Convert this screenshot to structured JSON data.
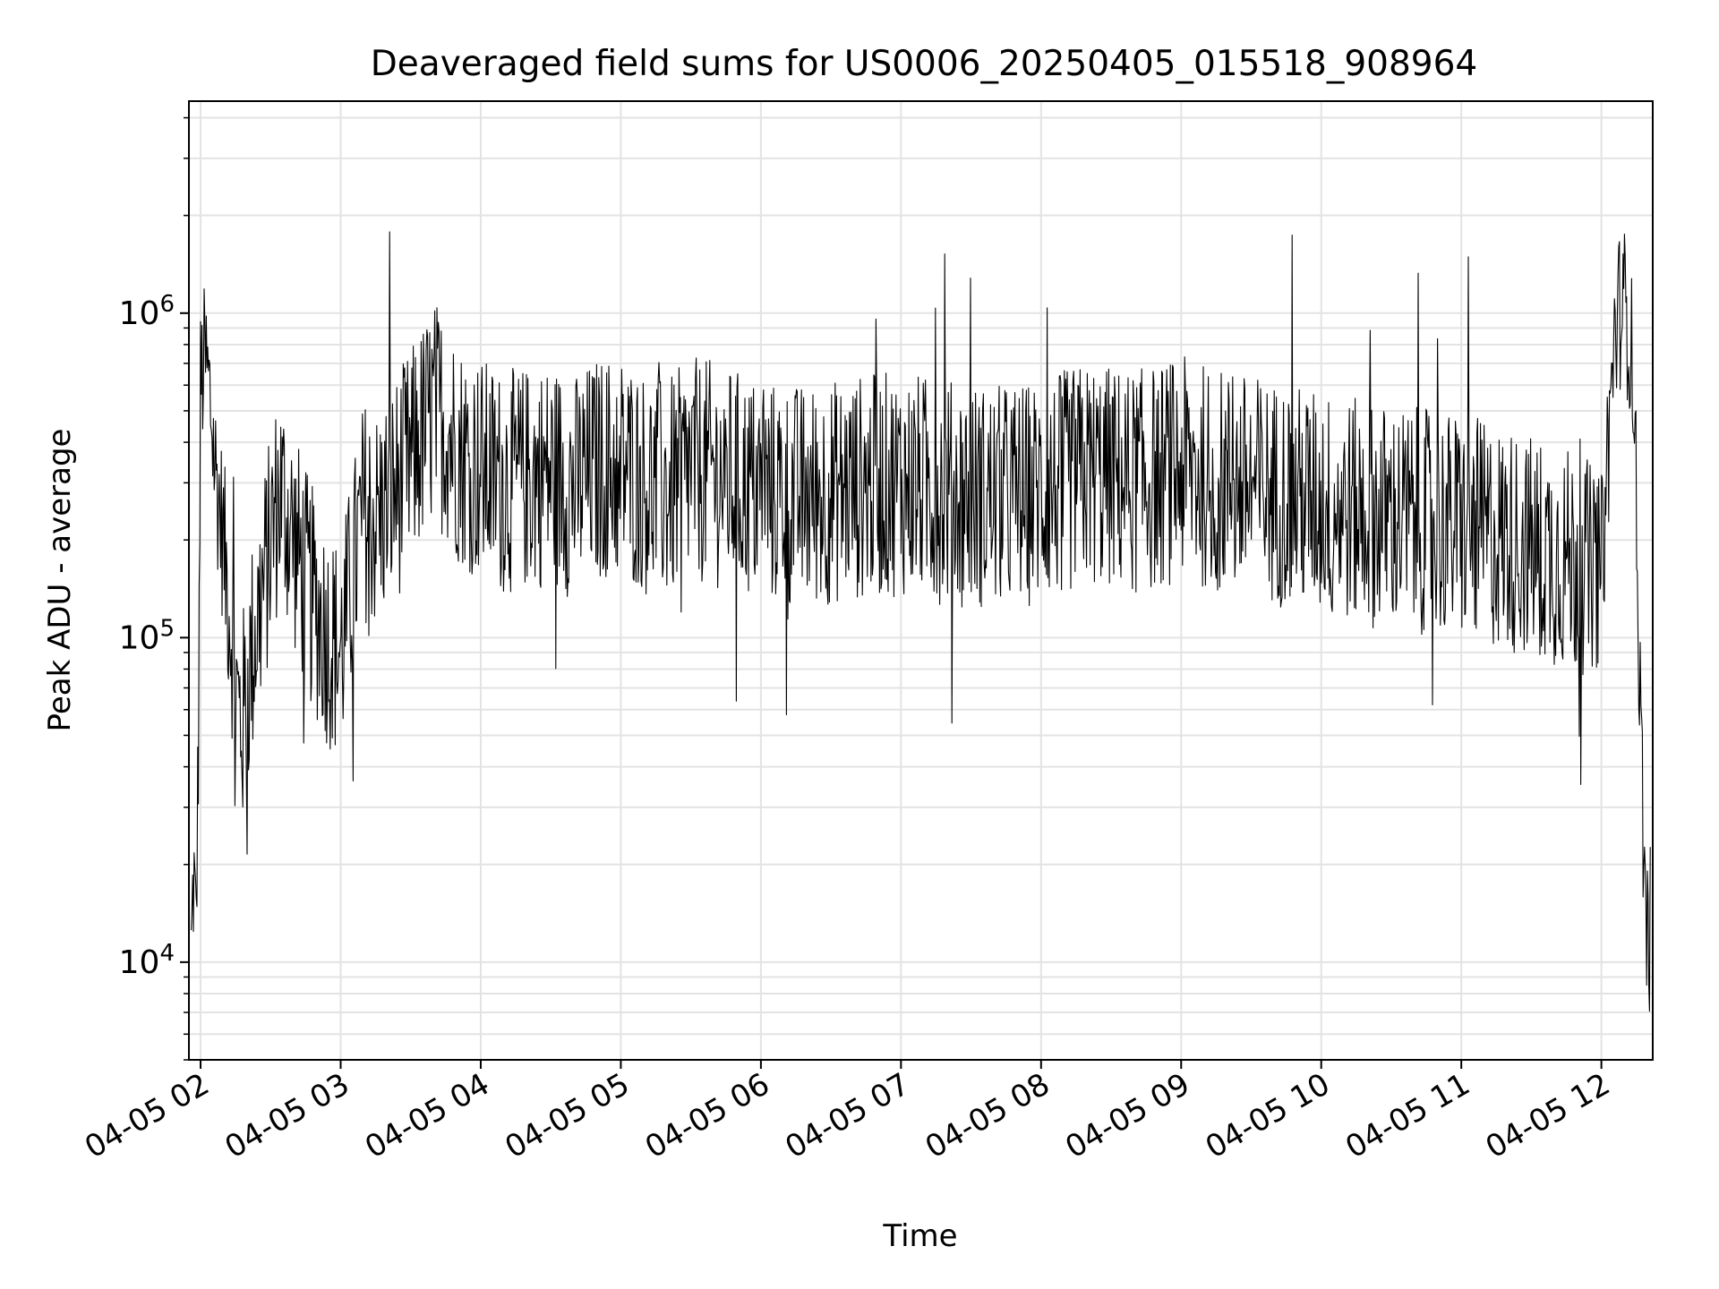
{
  "chart_data": {
    "type": "line",
    "title": "Deaveraged field sums for US0006_20250405_015518_908964",
    "xlabel": "Time",
    "ylabel": "Peak ADU - average",
    "yscale": "log",
    "ylim": [
      5000,
      4500000
    ],
    "xlim": [
      "2025-04-05 01:55",
      "2025-04-05 12:22"
    ],
    "grid": true,
    "grid_minor": true,
    "line_color": "#000000",
    "x_tick_labels": [
      "04-05 02",
      "04-05 03",
      "04-05 04",
      "04-05 05",
      "04-05 06",
      "04-05 07",
      "04-05 08",
      "04-05 09",
      "04-05 10",
      "04-05 11",
      "04-05 12"
    ],
    "x_tick_values": [
      "2025-04-05 02:00",
      "2025-04-05 03:00",
      "2025-04-05 04:00",
      "2025-04-05 05:00",
      "2025-04-05 06:00",
      "2025-04-05 07:00",
      "2025-04-05 08:00",
      "2025-04-05 09:00",
      "2025-04-05 10:00",
      "2025-04-05 11:00",
      "2025-04-05 12:00"
    ],
    "y_ticks": [
      {
        "value": 10000,
        "base": "10",
        "exp": "4"
      },
      {
        "value": 100000,
        "base": "10",
        "exp": "5"
      },
      {
        "value": 1000000,
        "base": "10",
        "exp": "6"
      }
    ],
    "series": [
      {
        "x": [
          "2025-04-05 01:56",
          "2025-04-05 01:57",
          "2025-04-05 01:58",
          "2025-04-05 01:59",
          "2025-04-05 02:00",
          "2025-04-05 02:02",
          "2025-04-05 02:04",
          "2025-04-05 02:06",
          "2025-04-05 02:08",
          "2025-04-05 02:10",
          "2025-04-05 02:12",
          "2025-04-05 02:14",
          "2025-04-05 02:16",
          "2025-04-05 02:18",
          "2025-04-05 02:20",
          "2025-04-05 02:22",
          "2025-04-05 02:25",
          "2025-04-05 02:28",
          "2025-04-05 02:31",
          "2025-04-05 02:34",
          "2025-04-05 02:37",
          "2025-04-05 02:40",
          "2025-04-05 02:45",
          "2025-04-05 02:50",
          "2025-04-05 02:55",
          "2025-04-05 03:00",
          "2025-04-05 03:05",
          "2025-04-05 03:10",
          "2025-04-05 03:15",
          "2025-04-05 03:20",
          "2025-04-05 03:25",
          "2025-04-05 03:30",
          "2025-04-05 03:35",
          "2025-04-05 03:40",
          "2025-04-05 03:45",
          "2025-04-05 03:50",
          "2025-04-05 03:55",
          "2025-04-05 04:00",
          "2025-04-05 04:10",
          "2025-04-05 04:20",
          "2025-04-05 04:30",
          "2025-04-05 04:40",
          "2025-04-05 04:50",
          "2025-04-05 05:00",
          "2025-04-05 05:10",
          "2025-04-05 05:20",
          "2025-04-05 05:30",
          "2025-04-05 05:40",
          "2025-04-05 05:50",
          "2025-04-05 06:00",
          "2025-04-05 06:20",
          "2025-04-05 06:40",
          "2025-04-05 07:00",
          "2025-04-05 07:20",
          "2025-04-05 07:40",
          "2025-04-05 08:00",
          "2025-04-05 08:20",
          "2025-04-05 08:40",
          "2025-04-05 09:00",
          "2025-04-05 09:20",
          "2025-04-05 09:40",
          "2025-04-05 10:00",
          "2025-04-05 10:20",
          "2025-04-05 10:40",
          "2025-04-05 11:00",
          "2025-04-05 11:20",
          "2025-04-05 11:40",
          "2025-04-05 11:50",
          "2025-04-05 12:00",
          "2025-04-05 12:03",
          "2025-04-05 12:06",
          "2025-04-05 12:09",
          "2025-04-05 12:12",
          "2025-04-05 12:14",
          "2025-04-05 12:16",
          "2025-04-05 12:18",
          "2025-04-05 12:19",
          "2025-04-05 12:20",
          "2025-04-05 12:21"
        ],
        "y": [
          10500,
          19000,
          12000,
          40000,
          600000,
          720000,
          550000,
          350000,
          260000,
          190000,
          130000,
          90000,
          60000,
          55000,
          70000,
          90000,
          120000,
          160000,
          220000,
          280000,
          240000,
          200000,
          150000,
          120000,
          100000,
          90000,
          150000,
          250000,
          230000,
          260000,
          300000,
          350000,
          420000,
          500000,
          450000,
          380000,
          350000,
          330000,
          300000,
          310000,
          320000,
          290000,
          330000,
          340000,
          300000,
          280000,
          330000,
          320000,
          300000,
          280000,
          270000,
          290000,
          300000,
          280000,
          270000,
          280000,
          320000,
          300000,
          330000,
          300000,
          280000,
          260000,
          240000,
          230000,
          220000,
          200000,
          180000,
          170000,
          160000,
          400000,
          900000,
          1100000,
          900000,
          600000,
          100000,
          25000,
          14000,
          11000,
          13000
        ]
      }
    ]
  }
}
